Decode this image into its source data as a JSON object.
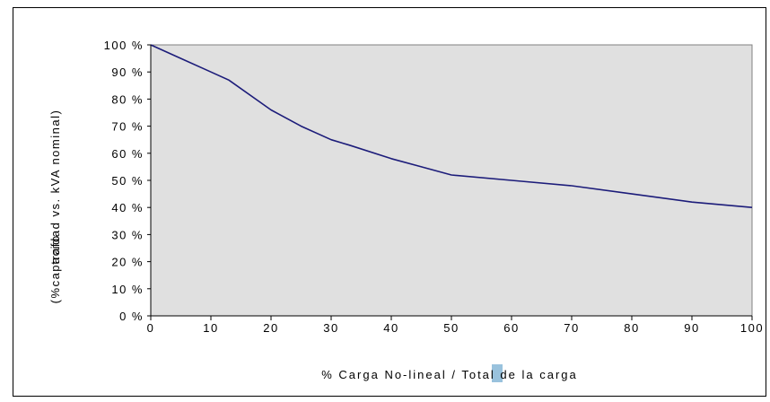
{
  "chart_data": {
    "type": "line",
    "title": "",
    "xlabel": "% Carga No-lineal / Total de la carga",
    "ylabel": "(%capacidad vs. kVA nominal)",
    "ylabel_overlap": "trafo",
    "xlim": [
      0,
      100
    ],
    "ylim": [
      0,
      100
    ],
    "x_ticks": [
      "0",
      "10",
      "20",
      "30",
      "40",
      "50",
      "60",
      "70",
      "80",
      "90",
      "100"
    ],
    "y_ticks": [
      "0 %",
      "10 %",
      "20 %",
      "30 %",
      "40 %",
      "50 %",
      "60 %",
      "70 %",
      "80 %",
      "90 %",
      "100 %"
    ],
    "grid": false,
    "legend": "none",
    "series": [
      {
        "x": [
          0,
          5,
          10,
          13,
          20,
          25,
          30,
          33,
          40,
          45,
          50,
          60,
          70,
          80,
          90,
          100
        ],
        "values": [
          100,
          95,
          90,
          87,
          76,
          70,
          65,
          63,
          58,
          55,
          52,
          50,
          48,
          45,
          42,
          40
        ]
      }
    ],
    "colors": {
      "plot_background": "#e0e0e0",
      "line": "#1c1c7a",
      "axis": "#000000"
    }
  }
}
